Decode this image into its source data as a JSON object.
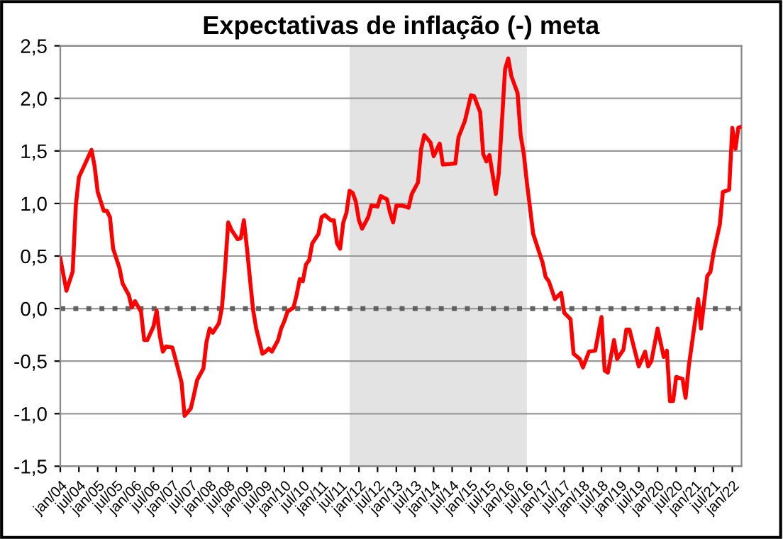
{
  "chart_data": {
    "type": "line",
    "title": "Expectativas de inflação (-) meta",
    "x": [
      "2004-01",
      "2004-03",
      "2004-05",
      "2004-06",
      "2004-07",
      "2004-09",
      "2004-11",
      "2004-12",
      "2005-01",
      "2005-03",
      "2005-04",
      "2005-05",
      "2005-06",
      "2005-08",
      "2005-09",
      "2005-11",
      "2005-12",
      "2006-01",
      "2006-03",
      "2006-04",
      "2006-05",
      "2006-07",
      "2006-08",
      "2006-09",
      "2006-10",
      "2006-11",
      "2007-01",
      "2007-02",
      "2007-04",
      "2007-05",
      "2007-07",
      "2007-08",
      "2007-09",
      "2007-11",
      "2007-12",
      "2008-01",
      "2008-02",
      "2008-04",
      "2008-05",
      "2008-06",
      "2008-07",
      "2008-08",
      "2008-10",
      "2008-11",
      "2008-12",
      "2009-01",
      "2009-02",
      "2009-03",
      "2009-04",
      "2009-06",
      "2009-07",
      "2009-08",
      "2009-09",
      "2009-11",
      "2009-12",
      "2010-01",
      "2010-02",
      "2010-04",
      "2010-05",
      "2010-06",
      "2010-07",
      "2010-08",
      "2010-09",
      "2010-10",
      "2010-12",
      "2011-01",
      "2011-02",
      "2011-04",
      "2011-05",
      "2011-06",
      "2011-07",
      "2011-08",
      "2011-09",
      "2011-10",
      "2011-11",
      "2011-12",
      "2012-01",
      "2012-02",
      "2012-04",
      "2012-05",
      "2012-07",
      "2012-08",
      "2012-10",
      "2012-11",
      "2012-12",
      "2013-01",
      "2013-03",
      "2013-05",
      "2013-06",
      "2013-08",
      "2013-09",
      "2013-10",
      "2013-12",
      "2014-01",
      "2014-03",
      "2014-04",
      "2014-08",
      "2014-09",
      "2014-11",
      "2014-12",
      "2015-01",
      "2015-02",
      "2015-04",
      "2015-05",
      "2015-06",
      "2015-07",
      "2015-09",
      "2015-10",
      "2015-12",
      "2016-01",
      "2016-02",
      "2016-04",
      "2016-05",
      "2016-06",
      "2016-07",
      "2016-09",
      "2016-12",
      "2017-01",
      "2017-02",
      "2017-04",
      "2017-06",
      "2017-07",
      "2017-09",
      "2017-10",
      "2017-12",
      "2018-01",
      "2018-03",
      "2018-05",
      "2018-07",
      "2018-08",
      "2018-09",
      "2018-11",
      "2018-12",
      "2019-02",
      "2019-03",
      "2019-04",
      "2019-07",
      "2019-09",
      "2019-10",
      "2019-11",
      "2020-01",
      "2020-03",
      "2020-04",
      "2020-05",
      "2020-06",
      "2020-07",
      "2020-09",
      "2020-10",
      "2020-11",
      "2021-02",
      "2021-03",
      "2021-05",
      "2021-06",
      "2021-07",
      "2021-09",
      "2021-10",
      "2021-12",
      "2022-01",
      "2022-02",
      "2022-03",
      "2022-04"
    ],
    "series": [
      {
        "color": "#ff0000",
        "values": [
          0.48,
          0.17,
          0.35,
          0.98,
          1.25,
          1.38,
          1.51,
          1.36,
          1.11,
          0.93,
          0.93,
          0.87,
          0.57,
          0.39,
          0.24,
          0.13,
          0.01,
          0.07,
          -0.03,
          -0.3,
          -0.3,
          -0.17,
          -0.02,
          -0.26,
          -0.41,
          -0.36,
          -0.37,
          -0.48,
          -0.7,
          -1.02,
          -0.95,
          -0.82,
          -0.68,
          -0.57,
          -0.32,
          -0.19,
          -0.23,
          -0.14,
          0.01,
          0.39,
          0.82,
          0.75,
          0.66,
          0.67,
          0.84,
          0.57,
          0.26,
          -0.01,
          -0.19,
          -0.43,
          -0.41,
          -0.38,
          -0.41,
          -0.3,
          -0.19,
          -0.12,
          -0.03,
          0.01,
          0.13,
          0.28,
          0.26,
          0.42,
          0.46,
          0.62,
          0.71,
          0.87,
          0.89,
          0.84,
          0.84,
          0.62,
          0.57,
          0.82,
          0.91,
          1.12,
          1.1,
          1.02,
          0.84,
          0.76,
          0.87,
          0.98,
          0.97,
          1.07,
          1.04,
          0.91,
          0.82,
          0.98,
          0.98,
          0.96,
          1.09,
          1.2,
          1.52,
          1.65,
          1.58,
          1.45,
          1.57,
          1.37,
          1.38,
          1.63,
          1.78,
          1.9,
          2.03,
          2.02,
          1.87,
          1.47,
          1.4,
          1.46,
          1.09,
          1.29,
          2.28,
          2.38,
          2.21,
          2.05,
          1.65,
          1.47,
          1.2,
          0.71,
          0.44,
          0.3,
          0.26,
          0.09,
          0.15,
          -0.04,
          -0.1,
          -0.43,
          -0.48,
          -0.56,
          -0.41,
          -0.4,
          -0.08,
          -0.59,
          -0.61,
          -0.3,
          -0.48,
          -0.39,
          -0.2,
          -0.2,
          -0.55,
          -0.41,
          -0.55,
          -0.5,
          -0.19,
          -0.46,
          -0.4,
          -0.88,
          -0.88,
          -0.65,
          -0.67,
          -0.85,
          -0.55,
          0.09,
          -0.19,
          0.31,
          0.35,
          0.53,
          0.8,
          1.11,
          1.13,
          1.72,
          1.52,
          1.72,
          1.73
        ]
      }
    ],
    "xlim": [
      "2004-01",
      "2022-04"
    ],
    "xticks": [
      {
        "value": "2004-01",
        "label": "jan/04"
      },
      {
        "value": "2004-07",
        "label": "jul/04"
      },
      {
        "value": "2005-01",
        "label": "jan/05"
      },
      {
        "value": "2005-07",
        "label": "jul/05"
      },
      {
        "value": "2006-01",
        "label": "jan/06"
      },
      {
        "value": "2006-07",
        "label": "jul/06"
      },
      {
        "value": "2007-01",
        "label": "jan/07"
      },
      {
        "value": "2007-07",
        "label": "jul/07"
      },
      {
        "value": "2008-01",
        "label": "jan/08"
      },
      {
        "value": "2008-07",
        "label": "jul/08"
      },
      {
        "value": "2009-01",
        "label": "jan/09"
      },
      {
        "value": "2009-07",
        "label": "jul/09"
      },
      {
        "value": "2010-01",
        "label": "jan/10"
      },
      {
        "value": "2010-07",
        "label": "jul/10"
      },
      {
        "value": "2011-01",
        "label": "jan/11"
      },
      {
        "value": "2011-07",
        "label": "jul/11"
      },
      {
        "value": "2012-01",
        "label": "jan/12"
      },
      {
        "value": "2012-07",
        "label": "jul/12"
      },
      {
        "value": "2013-01",
        "label": "jan/13"
      },
      {
        "value": "2013-07",
        "label": "jul/13"
      },
      {
        "value": "2014-01",
        "label": "jan/14"
      },
      {
        "value": "2014-07",
        "label": "jul/14"
      },
      {
        "value": "2015-01",
        "label": "jan/15"
      },
      {
        "value": "2015-07",
        "label": "jul/15"
      },
      {
        "value": "2016-01",
        "label": "jan/16"
      },
      {
        "value": "2016-07",
        "label": "jul/16"
      },
      {
        "value": "2017-01",
        "label": "jan/17"
      },
      {
        "value": "2017-07",
        "label": "jul/17"
      },
      {
        "value": "2018-01",
        "label": "jan/18"
      },
      {
        "value": "2018-07",
        "label": "jul/18"
      },
      {
        "value": "2019-01",
        "label": "jan/19"
      },
      {
        "value": "2019-07",
        "label": "jul/19"
      },
      {
        "value": "2020-01",
        "label": "jan/20"
      },
      {
        "value": "2020-07",
        "label": "jul/20"
      },
      {
        "value": "2021-01",
        "label": "jan/21"
      },
      {
        "value": "2021-07",
        "label": "jul/21"
      },
      {
        "value": "2022-01",
        "label": "jan/22"
      }
    ],
    "ylim": [
      -1.5,
      2.5
    ],
    "yticks": [
      {
        "value": -1.5,
        "label": "-1,5"
      },
      {
        "value": -1.0,
        "label": "-1,0"
      },
      {
        "value": -0.5,
        "label": "-0,5"
      },
      {
        "value": 0,
        "label": "0,0"
      },
      {
        "value": 0.5,
        "label": "0,5"
      },
      {
        "value": 1.0,
        "label": "1,0"
      },
      {
        "value": 1.5,
        "label": "1,5"
      },
      {
        "value": 2.0,
        "label": "2,0"
      },
      {
        "value": 2.5,
        "label": "2,5"
      }
    ],
    "grid": "y",
    "legend": false,
    "marker": "none",
    "line_style": "solid",
    "bands": [
      {
        "axis": "x",
        "from": "2011-10",
        "to": "2016-07",
        "color": "#e3e3e3"
      }
    ],
    "ref_lines": [
      {
        "axis": "y",
        "value": 0,
        "color": "#606060",
        "line_style": "dotted"
      }
    ]
  }
}
